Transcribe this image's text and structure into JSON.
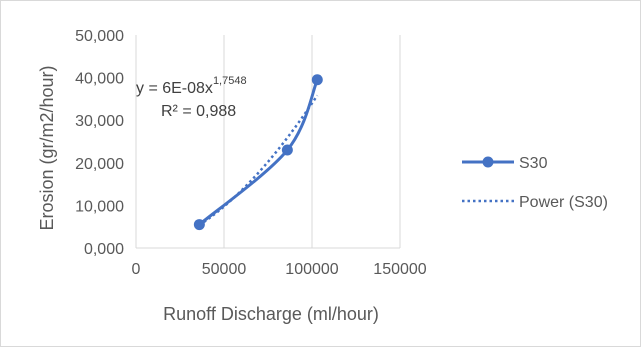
{
  "chart_data": {
    "type": "scatter",
    "xlabel": "Runoff  Discharge (ml/hour)",
    "ylabel": "Erosion (gr/m2/hour)",
    "xlim": [
      0,
      150000
    ],
    "ylim": [
      0,
      50000
    ],
    "x_ticks": [
      "0",
      "50000",
      "100000",
      "150000"
    ],
    "y_ticks": [
      "0,000",
      "10,000",
      "20,000",
      "30,000",
      "40,000",
      "50,000"
    ],
    "grid": "vertical",
    "legend_position": "right",
    "series": [
      {
        "name": "S30",
        "style": "line-with-markers",
        "color": "#4472c4",
        "x": [
          36000,
          86000,
          103000
        ],
        "y": [
          5500,
          23000,
          39500
        ]
      }
    ],
    "trendline": {
      "name": "Power (S30)",
      "style": "dotted",
      "color": "#4472c4",
      "equation_base": "y = 6E-08x",
      "equation_exponent": "1,7548",
      "r_squared": "R² = 0,988"
    }
  }
}
